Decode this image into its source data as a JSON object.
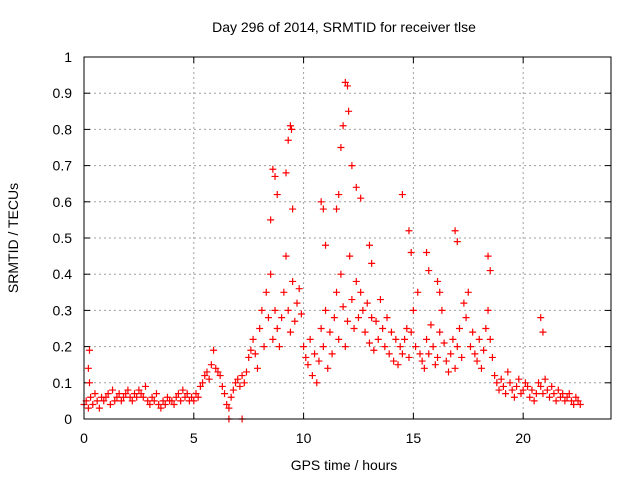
{
  "chart_data": {
    "type": "scatter",
    "title": "Day 296 of 2014, SRMTID for receiver tlse",
    "xlabel": "GPS time / hours",
    "ylabel": "SRMTID / TECUs",
    "xlim": [
      0,
      24
    ],
    "ylim": [
      0,
      1
    ],
    "xticks": [
      0,
      5,
      10,
      15,
      20
    ],
    "yticks": [
      0,
      0.1,
      0.2,
      0.3,
      0.4,
      0.5,
      0.6,
      0.7,
      0.8,
      0.9,
      1
    ],
    "x_tick_labels": [
      "0",
      "5",
      "10",
      "15",
      "20"
    ],
    "y_tick_labels": [
      "0",
      "0.1",
      "0.2",
      "0.3",
      "0.4",
      "0.5",
      "0.6",
      "0.7",
      "0.8",
      "0.9",
      "1"
    ],
    "grid": true,
    "marker": "+",
    "series": [
      {
        "name": "tlse",
        "color": "#ff0000",
        "x": [
          0.0,
          0.1,
          0.2,
          0.25,
          0.3,
          0.4,
          0.5,
          0.6,
          0.7,
          0.8,
          0.9,
          1.0,
          1.1,
          1.2,
          1.3,
          1.4,
          1.5,
          1.6,
          1.7,
          1.8,
          1.9,
          2.0,
          2.1,
          2.2,
          2.3,
          2.4,
          2.5,
          2.6,
          2.7,
          2.8,
          2.9,
          3.0,
          3.1,
          3.2,
          3.3,
          3.4,
          3.5,
          3.6,
          3.7,
          3.8,
          3.9,
          4.0,
          4.1,
          4.2,
          4.3,
          4.4,
          4.5,
          4.6,
          4.7,
          4.8,
          4.9,
          5.0,
          5.1,
          5.2,
          5.3,
          5.4,
          5.5,
          5.6,
          5.7,
          5.8,
          5.9,
          6.0,
          6.1,
          6.2,
          6.3,
          6.4,
          6.5,
          6.6,
          6.7,
          6.8,
          6.9,
          7.0,
          7.1,
          7.2,
          7.3,
          7.4,
          7.5,
          7.6,
          7.7,
          7.8,
          7.9,
          8.0,
          8.1,
          8.2,
          8.3,
          8.4,
          8.5,
          8.6,
          8.7,
          8.8,
          8.9,
          9.0,
          9.1,
          9.2,
          9.3,
          9.4,
          9.5,
          9.6,
          9.7,
          9.8,
          9.9,
          10.0,
          10.1,
          10.2,
          10.3,
          10.4,
          10.5,
          10.6,
          10.7,
          10.8,
          10.9,
          11.0,
          11.1,
          11.2,
          11.3,
          11.4,
          11.5,
          11.6,
          11.7,
          11.8,
          11.9,
          12.0,
          12.1,
          12.2,
          12.3,
          12.4,
          12.5,
          12.6,
          12.7,
          12.8,
          12.9,
          13.0,
          13.1,
          13.2,
          13.3,
          13.4,
          13.5,
          13.6,
          13.7,
          13.8,
          13.9,
          14.0,
          14.1,
          14.2,
          14.3,
          14.4,
          14.5,
          14.6,
          14.7,
          14.8,
          14.9,
          15.0,
          15.1,
          15.2,
          15.3,
          15.4,
          15.5,
          15.6,
          15.7,
          15.8,
          15.9,
          16.0,
          16.1,
          16.2,
          16.3,
          16.4,
          16.5,
          16.6,
          16.7,
          16.8,
          16.9,
          17.0,
          17.1,
          17.2,
          17.3,
          17.4,
          17.5,
          17.6,
          17.7,
          17.8,
          17.9,
          18.0,
          18.1,
          18.2,
          18.3,
          18.4,
          18.5,
          18.6,
          18.7,
          18.8,
          18.9,
          19.0,
          19.1,
          19.2,
          19.3,
          19.4,
          19.5,
          19.6,
          19.7,
          19.8,
          19.9,
          20.0,
          20.1,
          20.2,
          20.3,
          20.4,
          20.5,
          20.6,
          20.7,
          20.8,
          20.9,
          21.0,
          21.1,
          21.2,
          21.3,
          21.4,
          21.5,
          21.6,
          21.7,
          21.8,
          21.9,
          22.0,
          22.1,
          22.2,
          22.3,
          22.4,
          22.5,
          22.6,
          9.4,
          9.45,
          9.3,
          9.2,
          9.5,
          11.9,
          12.0,
          12.05,
          11.8,
          11.7,
          12.2,
          12.4,
          12.6,
          11.6,
          11.5,
          14.5,
          16.9,
          17.0,
          18.4,
          18.5,
          20.8,
          20.9,
          8.6,
          8.7,
          8.8,
          8.5,
          10.8,
          10.9,
          11.0,
          13.0,
          13.1,
          14.8,
          14.9,
          15.6,
          15.7,
          16.1,
          16.2,
          6.6,
          7.2,
          0.2,
          0.25
        ],
        "y": [
          0.04,
          0.05,
          0.03,
          0.19,
          0.06,
          0.04,
          0.07,
          0.05,
          0.03,
          0.06,
          0.05,
          0.06,
          0.07,
          0.04,
          0.08,
          0.05,
          0.06,
          0.07,
          0.05,
          0.06,
          0.07,
          0.08,
          0.06,
          0.05,
          0.07,
          0.06,
          0.08,
          0.07,
          0.06,
          0.09,
          0.05,
          0.04,
          0.06,
          0.05,
          0.07,
          0.04,
          0.03,
          0.05,
          0.04,
          0.06,
          0.05,
          0.05,
          0.04,
          0.06,
          0.07,
          0.05,
          0.08,
          0.06,
          0.07,
          0.05,
          0.06,
          0.05,
          0.07,
          0.06,
          0.09,
          0.1,
          0.12,
          0.13,
          0.11,
          0.15,
          0.19,
          0.14,
          0.13,
          0.12,
          0.09,
          0.07,
          0.04,
          0.03,
          0.06,
          0.08,
          0.1,
          0.11,
          0.09,
          0.12,
          0.1,
          0.13,
          0.17,
          0.19,
          0.22,
          0.18,
          0.14,
          0.25,
          0.3,
          0.2,
          0.35,
          0.28,
          0.4,
          0.22,
          0.3,
          0.25,
          0.2,
          0.28,
          0.35,
          0.45,
          0.3,
          0.24,
          0.38,
          0.27,
          0.32,
          0.36,
          0.29,
          0.2,
          0.17,
          0.15,
          0.22,
          0.12,
          0.18,
          0.1,
          0.16,
          0.25,
          0.2,
          0.3,
          0.14,
          0.24,
          0.18,
          0.28,
          0.35,
          0.22,
          0.4,
          0.31,
          0.2,
          0.27,
          0.45,
          0.33,
          0.25,
          0.38,
          0.28,
          0.35,
          0.3,
          0.24,
          0.32,
          0.21,
          0.28,
          0.19,
          0.27,
          0.22,
          0.33,
          0.25,
          0.2,
          0.28,
          0.18,
          0.24,
          0.16,
          0.22,
          0.15,
          0.2,
          0.18,
          0.22,
          0.25,
          0.17,
          0.24,
          0.3,
          0.2,
          0.35,
          0.18,
          0.16,
          0.14,
          0.22,
          0.18,
          0.26,
          0.2,
          0.15,
          0.17,
          0.24,
          0.3,
          0.21,
          0.16,
          0.13,
          0.18,
          0.22,
          0.14,
          0.2,
          0.25,
          0.17,
          0.32,
          0.28,
          0.35,
          0.2,
          0.24,
          0.18,
          0.16,
          0.22,
          0.14,
          0.19,
          0.25,
          0.3,
          0.22,
          0.17,
          0.12,
          0.1,
          0.08,
          0.11,
          0.09,
          0.07,
          0.13,
          0.1,
          0.08,
          0.06,
          0.09,
          0.11,
          0.07,
          0.08,
          0.1,
          0.09,
          0.06,
          0.08,
          0.05,
          0.07,
          0.1,
          0.09,
          0.07,
          0.11,
          0.08,
          0.06,
          0.09,
          0.07,
          0.05,
          0.08,
          0.06,
          0.07,
          0.05,
          0.06,
          0.07,
          0.05,
          0.04,
          0.06,
          0.05,
          0.04,
          0.81,
          0.8,
          0.77,
          0.68,
          0.58,
          0.93,
          0.92,
          0.85,
          0.81,
          0.75,
          0.7,
          0.64,
          0.61,
          0.62,
          0.58,
          0.62,
          0.52,
          0.49,
          0.45,
          0.41,
          0.28,
          0.24,
          0.69,
          0.67,
          0.62,
          0.55,
          0.6,
          0.58,
          0.48,
          0.48,
          0.43,
          0.52,
          0.46,
          0.46,
          0.41,
          0.38,
          0.35,
          0.0,
          0.0,
          0.14,
          0.1
        ]
      }
    ]
  }
}
